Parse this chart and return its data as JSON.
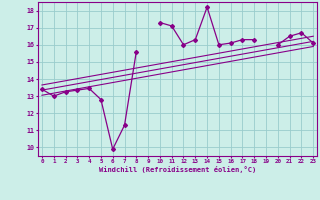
{
  "xlabel": "Windchill (Refroidissement éolien,°C)",
  "bg_color": "#cceee8",
  "line_color": "#880088",
  "grid_color": "#99cccc",
  "x_values": [
    0,
    1,
    2,
    3,
    4,
    5,
    6,
    7,
    8,
    9,
    10,
    11,
    12,
    13,
    14,
    15,
    16,
    17,
    18,
    19,
    20,
    21,
    22,
    23
  ],
  "y_main": [
    13.4,
    13.0,
    13.25,
    13.35,
    13.45,
    12.8,
    9.9,
    11.3,
    15.6,
    null,
    17.3,
    17.1,
    16.0,
    16.3,
    18.2,
    16.0,
    16.1,
    16.3,
    16.3,
    null,
    16.0,
    16.5,
    16.7,
    16.1
  ],
  "reg_lines": [
    {
      "x": [
        0,
        23
      ],
      "y": [
        13.05,
        15.9
      ]
    },
    {
      "x": [
        0,
        23
      ],
      "y": [
        13.35,
        16.2
      ]
    },
    {
      "x": [
        0,
        23
      ],
      "y": [
        13.65,
        16.5
      ]
    }
  ],
  "xlim": [
    -0.3,
    23.3
  ],
  "ylim": [
    9.5,
    18.5
  ],
  "yticks": [
    10,
    11,
    12,
    13,
    14,
    15,
    16,
    17,
    18
  ],
  "xticks": [
    0,
    1,
    2,
    3,
    4,
    5,
    6,
    7,
    8,
    9,
    10,
    11,
    12,
    13,
    14,
    15,
    16,
    17,
    18,
    19,
    20,
    21,
    22,
    23
  ]
}
